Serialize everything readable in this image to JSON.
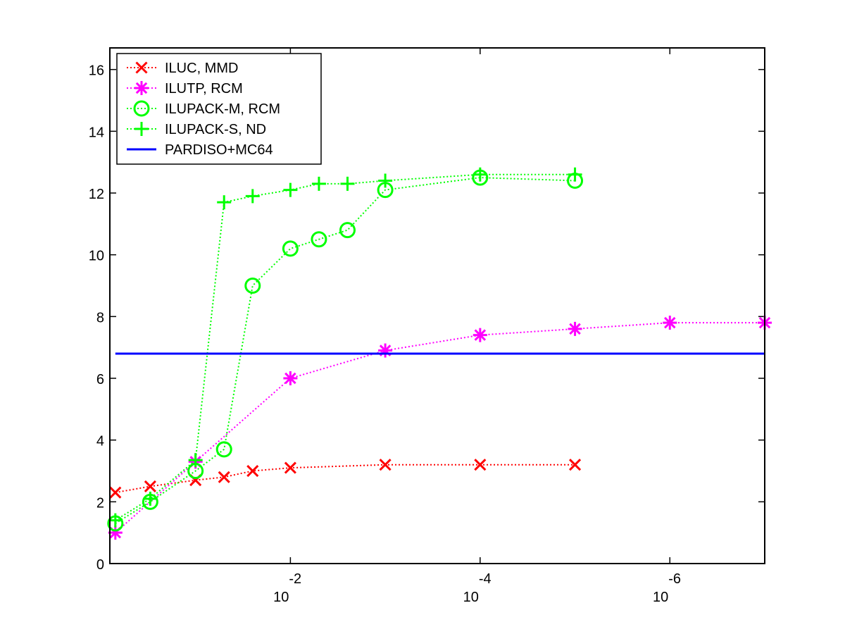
{
  "chart_data": {
    "type": "line",
    "title": "",
    "xlabel": "",
    "ylabel": "",
    "x_scale": "log-reversed",
    "xlim": [
      0.8,
      1e-07
    ],
    "ylim": [
      0,
      16.7
    ],
    "grid": false,
    "legend_position": "top-left",
    "x_ticks": [
      {
        "value": 0.01,
        "base": "10",
        "exp": "-2"
      },
      {
        "value": 0.0001,
        "base": "10",
        "exp": "-4"
      },
      {
        "value": 1e-06,
        "base": "10",
        "exp": "-6"
      }
    ],
    "y_ticks": [
      0,
      2,
      4,
      6,
      8,
      10,
      12,
      14,
      16
    ],
    "series": [
      {
        "name": "ILUC, MMD",
        "color": "#ff0000",
        "marker": "x",
        "line": "dotted",
        "x": [
          0.7,
          0.3,
          0.1,
          0.05,
          0.025,
          0.01,
          0.001,
          0.0001,
          1e-05
        ],
        "y": [
          2.3,
          2.5,
          2.7,
          2.8,
          3.0,
          3.1,
          3.2,
          3.2,
          3.2
        ]
      },
      {
        "name": "ILUTP, RCM",
        "color": "#ff00ff",
        "marker": "star",
        "line": "dotted",
        "x": [
          0.7,
          0.1,
          0.01,
          0.001,
          0.0001,
          1e-05,
          1e-06,
          1e-07
        ],
        "y": [
          1.0,
          3.3,
          6.0,
          6.9,
          7.4,
          7.6,
          7.8,
          7.8
        ]
      },
      {
        "name": "ILUPACK-M, RCM",
        "color": "#00ff00",
        "marker": "circle",
        "line": "dotted",
        "x": [
          0.7,
          0.3,
          0.1,
          0.05,
          0.025,
          0.01,
          0.005,
          0.0025,
          0.001,
          0.0001,
          1e-05
        ],
        "y": [
          1.3,
          2.0,
          3.0,
          3.7,
          9.0,
          10.2,
          10.5,
          10.8,
          12.1,
          12.5,
          12.4
        ]
      },
      {
        "name": "ILUPACK-S, ND",
        "color": "#00ff00",
        "marker": "plus",
        "line": "dotted",
        "x": [
          0.7,
          0.3,
          0.1,
          0.05,
          0.025,
          0.01,
          0.005,
          0.0025,
          0.001,
          0.0001,
          1e-05
        ],
        "y": [
          1.4,
          2.1,
          3.35,
          11.7,
          11.9,
          12.1,
          12.3,
          12.3,
          12.4,
          12.6,
          12.6
        ]
      },
      {
        "name": "PARDISO+MC64",
        "color": "#0000ff",
        "marker": "none",
        "line": "solid",
        "x": [
          0.7,
          1e-07
        ],
        "y": [
          6.8,
          6.8
        ]
      }
    ]
  }
}
